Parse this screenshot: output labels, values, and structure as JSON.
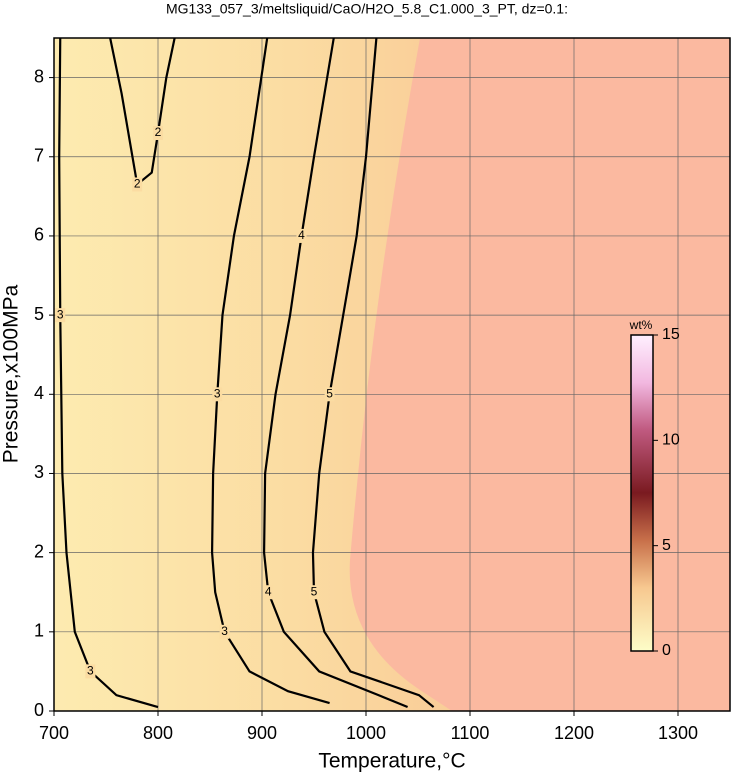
{
  "chart_data": {
    "type": "contour",
    "title": "MG133_057_3/meltsliquid/CaO/H2O_5.8_C1.000_3_PT, dz=0.1:",
    "x_label": "Temperature,°C",
    "y_label": "Pressure,x100MPa",
    "xlim": [
      700,
      1350
    ],
    "ylim": [
      0,
      8.5
    ],
    "xticks": [
      700,
      800,
      900,
      1000,
      1100,
      1200,
      1300
    ],
    "yticks": [
      0,
      1,
      2,
      3,
      4,
      5,
      6,
      7,
      8
    ],
    "grid": true,
    "contours": [
      {
        "level": 2,
        "T": [
          754,
          765,
          780,
          794,
          800,
          808,
          816
        ],
        "P": [
          8.5,
          7.8,
          6.65,
          6.8,
          7.3,
          8.0,
          8.5
        ]
      },
      {
        "level": 3,
        "T": [
          706,
          705,
          706,
          708,
          712,
          720,
          735,
          760,
          800
        ],
        "P": [
          8.5,
          7,
          5,
          3,
          2,
          1,
          0.5,
          0.2,
          0.05
        ]
      },
      {
        "level": 3,
        "T": [
          905,
          888,
          873,
          862,
          857,
          853,
          852,
          855,
          864,
          888,
          925,
          965
        ],
        "P": [
          8.5,
          7,
          6,
          5,
          4,
          3,
          2,
          1.5,
          1,
          0.5,
          0.25,
          0.1
        ]
      },
      {
        "level": 4,
        "T": [
          969,
          950,
          938,
          927,
          913,
          903,
          902,
          906,
          921,
          955,
          1012,
          1040
        ],
        "P": [
          8.5,
          7,
          6,
          5,
          4,
          3,
          2,
          1.5,
          1,
          0.5,
          0.2,
          0.05
        ]
      },
      {
        "level": 5,
        "T": [
          1010,
          1000,
          991,
          982,
          965,
          955,
          949,
          950,
          960,
          985,
          1051,
          1065
        ],
        "P": [
          8.5,
          7,
          6,
          5.3,
          4,
          3,
          2,
          1.5,
          1,
          0.5,
          0.2,
          0.05
        ]
      }
    ],
    "colorbar": {
      "label": "wt%",
      "lim": [
        0,
        15
      ],
      "ticks": [
        0,
        5,
        10,
        15
      ]
    }
  }
}
